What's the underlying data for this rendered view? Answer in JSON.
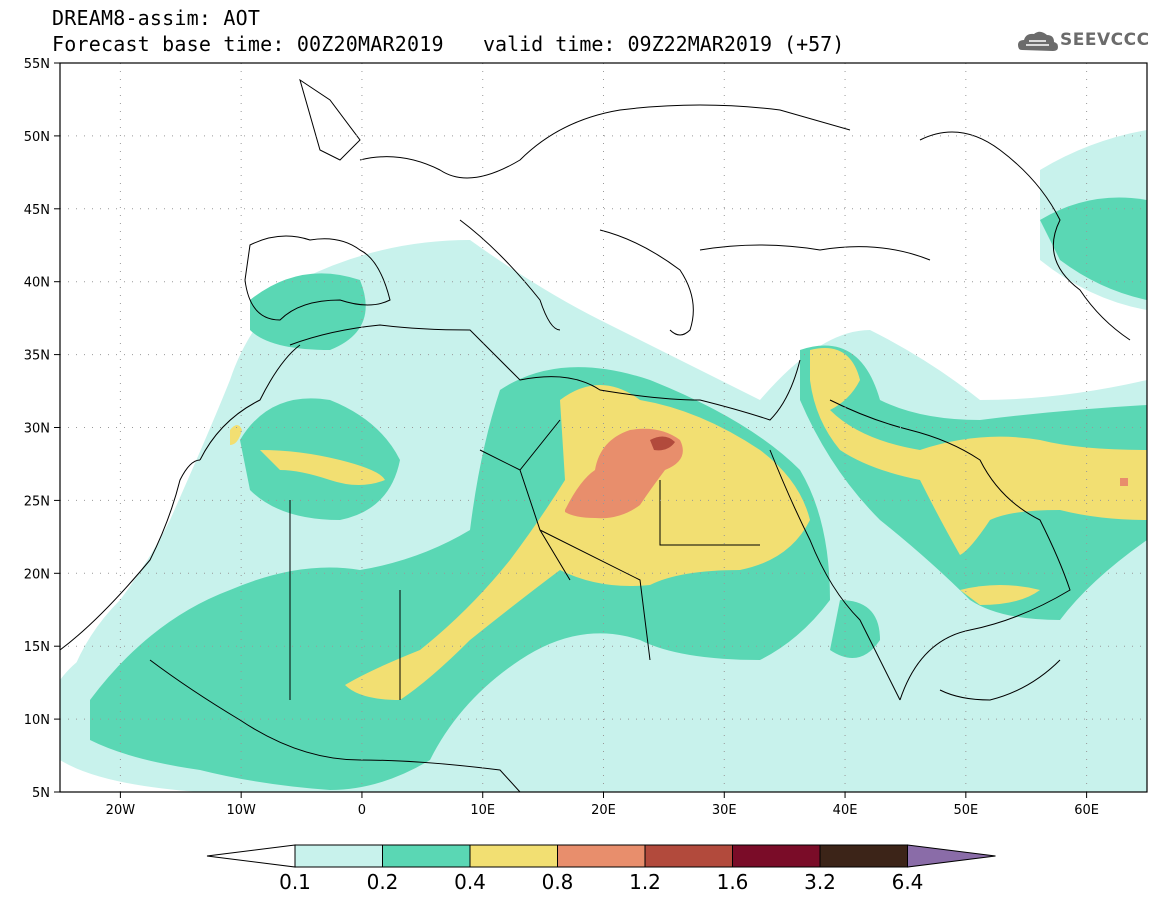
{
  "header": {
    "title_line1": "DREAM8-assim: AOT",
    "title_line2": "Forecast base time: 00Z20MAR2019",
    "valid_time": "valid time: 09Z22MAR2019 (+57)",
    "logo_text": "SEEVCCC"
  },
  "map": {
    "lat_labels": [
      "55N",
      "50N",
      "45N",
      "40N",
      "35N",
      "30N",
      "25N",
      "20N",
      "15N",
      "10N",
      "5N"
    ],
    "lat_values": [
      55,
      50,
      45,
      40,
      35,
      30,
      25,
      20,
      15,
      10,
      5
    ],
    "lon_labels": [
      "20W",
      "10W",
      "0",
      "10E",
      "20E",
      "30E",
      "40E",
      "50E",
      "60E"
    ],
    "lon_values": [
      -20,
      -10,
      0,
      10,
      20,
      30,
      40,
      50,
      60
    ],
    "lon_range": [
      -25,
      65
    ],
    "lat_range": [
      5,
      55
    ]
  },
  "legend": {
    "thresholds": [
      "0.1",
      "0.2",
      "0.4",
      "0.8",
      "1.2",
      "1.6",
      "3.2",
      "6.4"
    ],
    "colors": [
      "#c8f2ec",
      "#5ad7b4",
      "#f2df72",
      "#e88e6c",
      "#b24a3c",
      "#7a0c28",
      "#3c2418",
      "#8a6ca8"
    ],
    "below_color": "#ffffff"
  }
}
